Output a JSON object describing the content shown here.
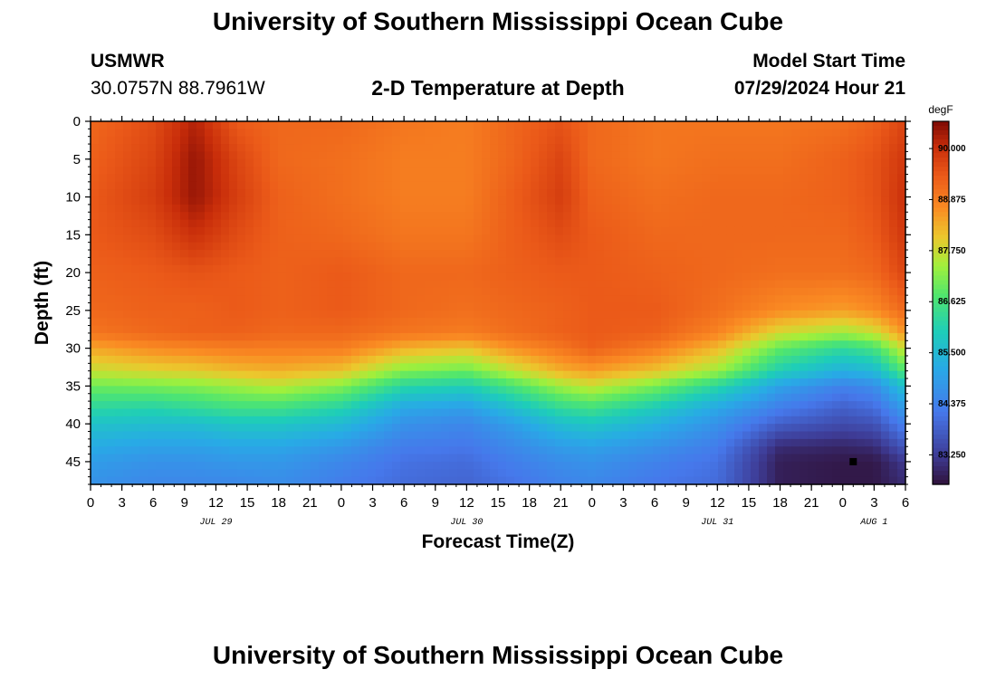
{
  "header": {
    "title": "University of Southern Mississippi Ocean Cube",
    "station": "USMWR",
    "coordinates": "30.0757N  88.7961W",
    "subtitle": "2-D Temperature at Depth",
    "model_start_label": "Model Start Time",
    "model_start_value": "07/29/2024 Hour 21"
  },
  "footer": {
    "title": "University of Southern Mississippi Ocean Cube"
  },
  "chart_data": {
    "type": "heatmap",
    "title": "2-D Temperature at Depth",
    "xlabel": "Forecast Time(Z)",
    "ylabel": "Depth (ft)",
    "colorbar_unit": "degF",
    "colorbar_ticks": [
      "90.000",
      "88.875",
      "87.750",
      "86.625",
      "85.500",
      "84.375",
      "83.250"
    ],
    "colorbar_range": [
      82.6,
      90.6
    ],
    "x_range_hours": [
      0,
      78
    ],
    "x_tick_labels": [
      "0",
      "3",
      "6",
      "9",
      "12",
      "15",
      "18",
      "21",
      "0",
      "3",
      "6",
      "9",
      "12",
      "15",
      "18",
      "21",
      "0",
      "3",
      "6",
      "9",
      "12",
      "15",
      "18",
      "21",
      "0",
      "3",
      "6"
    ],
    "date_labels": [
      {
        "label": "JUL 29",
        "hour": 12
      },
      {
        "label": "JUL 30",
        "hour": 36
      },
      {
        "label": "JUL 31",
        "hour": 60
      },
      {
        "label": "AUG 1",
        "hour": 75
      }
    ],
    "y_range_ft": [
      0,
      48
    ],
    "y_tick_labels": [
      "0",
      "5",
      "10",
      "15",
      "20",
      "25",
      "30",
      "35",
      "40",
      "45"
    ],
    "marker": {
      "hour": 73,
      "depth": 45
    },
    "hours": [
      0,
      6,
      10,
      14,
      18,
      24,
      30,
      36,
      40,
      45,
      48,
      54,
      60,
      66,
      72,
      75,
      78
    ],
    "depths": [
      0,
      5,
      10,
      15,
      20,
      25,
      28,
      30,
      33,
      35,
      38,
      40,
      43,
      45,
      48
    ],
    "temperature": [
      [
        89.2,
        89.6,
        90.2,
        89.4,
        89.2,
        89.2,
        89.0,
        88.9,
        89.2,
        89.5,
        89.2,
        89.0,
        89.0,
        89.0,
        89.1,
        89.3,
        89.7
      ],
      [
        89.3,
        89.7,
        90.4,
        89.7,
        89.2,
        89.1,
        88.9,
        88.9,
        89.2,
        89.7,
        89.2,
        89.0,
        89.1,
        89.1,
        89.3,
        89.5,
        89.9
      ],
      [
        89.4,
        89.8,
        90.4,
        89.8,
        89.3,
        89.1,
        88.9,
        88.9,
        89.3,
        89.8,
        89.3,
        89.1,
        89.2,
        89.2,
        89.3,
        89.5,
        90.0
      ],
      [
        89.4,
        89.6,
        90.0,
        89.6,
        89.3,
        89.2,
        89.0,
        89.0,
        89.3,
        89.6,
        89.4,
        89.2,
        89.2,
        89.2,
        89.2,
        89.4,
        89.9
      ],
      [
        89.3,
        89.4,
        89.5,
        89.4,
        89.3,
        89.4,
        89.2,
        89.2,
        89.3,
        89.4,
        89.4,
        89.3,
        89.2,
        89.1,
        89.1,
        89.2,
        89.7
      ],
      [
        89.2,
        89.3,
        89.3,
        89.4,
        89.3,
        89.4,
        89.2,
        89.1,
        89.2,
        89.3,
        89.4,
        89.4,
        89.1,
        88.7,
        88.5,
        88.7,
        89.2
      ],
      [
        89.0,
        89.2,
        89.3,
        89.3,
        89.2,
        89.2,
        89.0,
        88.9,
        89.1,
        89.3,
        89.4,
        89.3,
        88.8,
        87.8,
        87.4,
        87.7,
        88.6
      ],
      [
        88.4,
        88.7,
        88.8,
        88.9,
        88.9,
        88.9,
        88.3,
        88.1,
        88.6,
        89.0,
        89.3,
        88.9,
        88.2,
        86.9,
        86.3,
        86.6,
        87.8
      ],
      [
        87.7,
        87.9,
        88.0,
        88.2,
        88.3,
        88.1,
        87.2,
        87.0,
        87.6,
        88.3,
        88.5,
        88.1,
        87.4,
        86.0,
        85.3,
        85.5,
        86.8
      ],
      [
        87.0,
        87.1,
        87.2,
        87.4,
        87.6,
        87.2,
        86.2,
        86.0,
        86.6,
        87.4,
        87.7,
        87.1,
        86.2,
        85.0,
        84.4,
        84.6,
        85.7
      ],
      [
        86.2,
        86.1,
        86.3,
        86.5,
        86.5,
        86.1,
        85.1,
        84.9,
        85.5,
        86.3,
        86.5,
        85.9,
        85.1,
        84.3,
        83.8,
        84.0,
        84.9
      ],
      [
        85.7,
        85.6,
        85.6,
        85.8,
        85.8,
        85.5,
        84.7,
        84.5,
        84.9,
        85.6,
        85.8,
        85.3,
        84.7,
        83.8,
        83.5,
        83.6,
        84.4
      ],
      [
        85.2,
        85.0,
        85.0,
        85.1,
        85.1,
        84.8,
        84.3,
        84.2,
        84.5,
        84.9,
        85.0,
        84.7,
        84.3,
        83.0,
        82.9,
        83.0,
        83.7
      ],
      [
        84.9,
        84.7,
        84.7,
        84.8,
        84.8,
        84.5,
        84.1,
        84.0,
        84.3,
        84.6,
        84.7,
        84.4,
        84.1,
        82.8,
        82.7,
        82.7,
        83.2
      ],
      [
        84.7,
        84.5,
        84.5,
        84.5,
        84.6,
        84.3,
        84.0,
        83.9,
        84.1,
        84.4,
        84.5,
        84.2,
        84.0,
        82.8,
        82.7,
        82.7,
        83.0
      ]
    ]
  }
}
